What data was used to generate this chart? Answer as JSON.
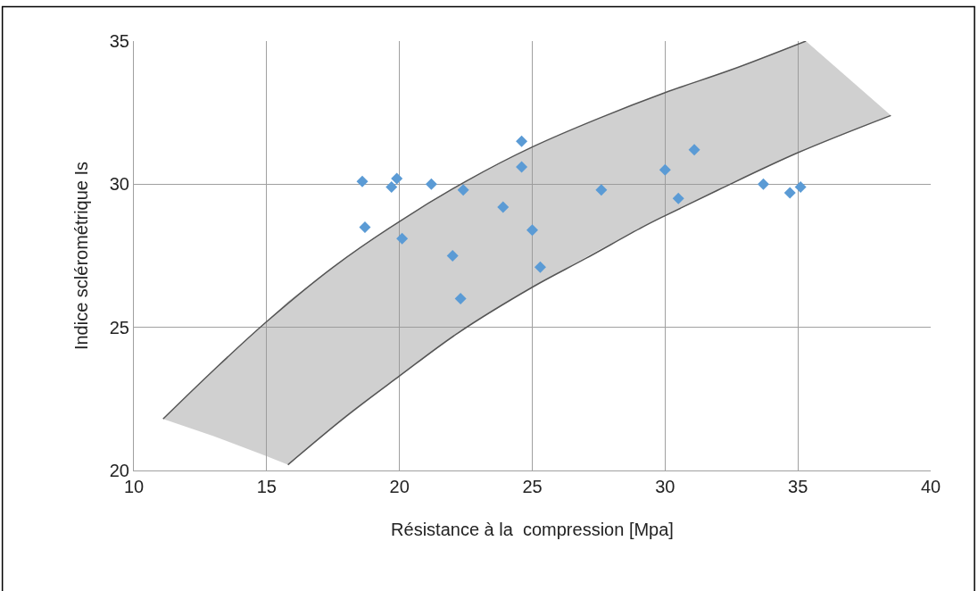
{
  "chart_data": {
    "type": "scatter",
    "xlabel": "Résistance à la  compression [Mpa]",
    "ylabel": "Indice sclérométrique Is",
    "xlim": [
      10,
      40
    ],
    "ylim": [
      20,
      35
    ],
    "xticks": [
      10,
      15,
      20,
      25,
      30,
      35,
      40
    ],
    "yticks": [
      20,
      25,
      30,
      35
    ],
    "grid": true,
    "marker": "diamond",
    "series": [
      {
        "type": "line",
        "marker": "none",
        "color": "#555555",
        "x": [
          11.1,
          13,
          15,
          17.5,
          20,
          22.5,
          25,
          27.5,
          30,
          32.5,
          35.3
        ],
        "values": [
          21.8,
          23.5,
          25.2,
          27.1,
          28.7,
          30.1,
          31.3,
          32.3,
          33.2,
          34.0,
          35.0
        ]
      },
      {
        "type": "line",
        "marker": "none",
        "color": "#555555",
        "x": [
          15.8,
          18,
          20,
          22.2,
          25,
          27,
          29.15,
          30,
          32,
          35,
          38.5
        ],
        "values": [
          20.2,
          21.9,
          23.3,
          24.8,
          26.4,
          27.4,
          28.5,
          28.9,
          29.8,
          31.1,
          32.4
        ]
      },
      {
        "type": "line",
        "marker": "none",
        "color": "#969696",
        "x": [
          11.1,
          13,
          15,
          15.8,
          17.5,
          20,
          22.5,
          25,
          27.5,
          30,
          32.5,
          35,
          35.3,
          38.5
        ],
        "values": [
          null,
          null,
          null,
          null,
          null,
          null,
          null,
          null,
          null,
          null,
          null,
          null,
          null,
          null
        ],
        "lower": [
          21.8,
          21.2,
          20.5,
          20.2,
          21.5,
          23.3,
          25.0,
          26.4,
          27.7,
          28.9,
          30.0,
          31.1,
          31.2,
          32.4
        ],
        "upper": [
          21.8,
          23.5,
          25.2,
          25.9,
          27.1,
          28.7,
          30.1,
          31.3,
          32.3,
          33.2,
          34.0,
          34.9,
          35.0,
          32.4
        ]
      },
      {
        "color": "#5b9bd5",
        "x": [
          18.6,
          19.9,
          19.7,
          21.2,
          18.7,
          20.1,
          22.4,
          24.6,
          24.6,
          23.9,
          25.0,
          22.0,
          25.3,
          22.3,
          27.6,
          31.1,
          30.0,
          30.5,
          33.7,
          34.7,
          35.1
        ],
        "values": [
          30.1,
          30.2,
          29.9,
          30.0,
          28.5,
          28.1,
          29.8,
          31.5,
          30.6,
          29.2,
          28.4,
          27.5,
          27.1,
          26.0,
          29.8,
          31.2,
          30.5,
          29.5,
          30.0,
          29.7,
          29.9
        ]
      }
    ]
  }
}
